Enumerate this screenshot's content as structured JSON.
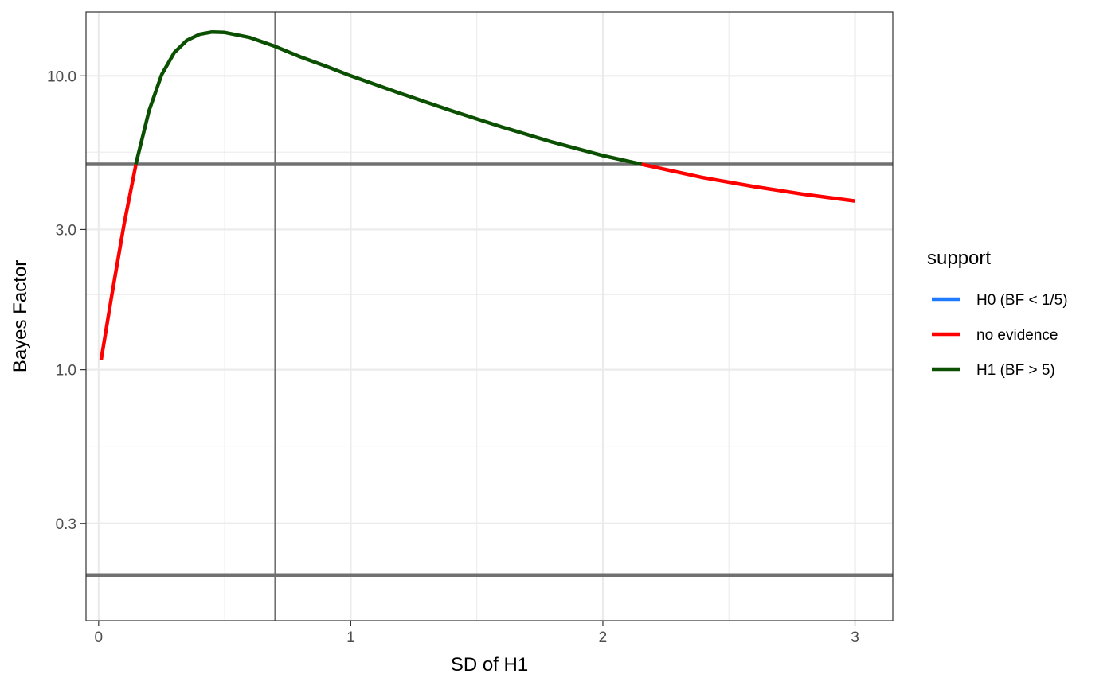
{
  "chart_data": {
    "type": "line",
    "xlabel": "SD of H1",
    "ylabel": "Bayes Factor",
    "y_scale": "log10",
    "xlim": [
      -0.05,
      3.15
    ],
    "ylim": [
      0.14,
      16.5
    ],
    "x_ticks": [
      0,
      1,
      2,
      3
    ],
    "x_tick_labels": [
      "0",
      "1",
      "2",
      "3"
    ],
    "x_minor_ticks": [
      0.5,
      1.5,
      2.5
    ],
    "y_ticks": [
      0.3,
      1.0,
      3.0,
      10.0
    ],
    "y_tick_labels": [
      "0.3",
      "1.0",
      "3.0",
      "10.0"
    ],
    "y_minor_ticks": [
      0.55,
      1.8,
      5.5
    ],
    "grid": true,
    "reference_lines": {
      "horizontal": [
        5,
        0.2
      ],
      "vertical": [
        0.7
      ]
    },
    "legend": {
      "title": "support",
      "position": "right",
      "entries": [
        {
          "label": "H0 (BF < 1/5)",
          "color": "#1e7bff"
        },
        {
          "label": "no evidence",
          "color": "#ff0000"
        },
        {
          "label": "H1 (BF > 5)",
          "color": "#0a5000"
        }
      ]
    },
    "x": [
      0.01,
      0.05,
      0.1,
      0.15,
      0.2,
      0.25,
      0.3,
      0.35,
      0.4,
      0.45,
      0.5,
      0.6,
      0.7,
      0.8,
      0.9,
      1.0,
      1.2,
      1.4,
      1.6,
      1.8,
      2.0,
      2.2,
      2.4,
      2.6,
      2.8,
      3.0
    ],
    "values": [
      1.08,
      1.75,
      3.1,
      5.1,
      7.6,
      10.1,
      12.0,
      13.2,
      13.85,
      14.1,
      14.05,
      13.5,
      12.6,
      11.6,
      10.8,
      10.0,
      8.7,
      7.6,
      6.7,
      5.95,
      5.35,
      4.9,
      4.5,
      4.2,
      3.95,
      3.75
    ],
    "colors": {
      "no_evidence": "#ff0000",
      "h1": "#0a5000",
      "h0": "#1e7bff",
      "reference": "#707070",
      "grid": "#ebebeb",
      "panel_border": "#333333"
    }
  }
}
